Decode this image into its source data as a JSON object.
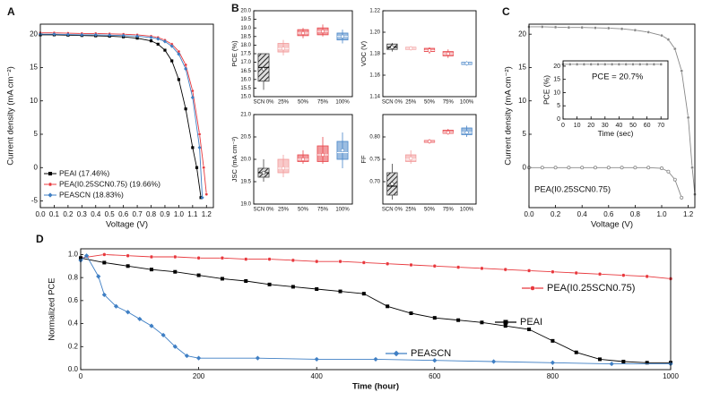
{
  "chart_data": [
    {
      "type": "line",
      "label": "A",
      "xlabel": "Voltage (V)",
      "ylabel": "Current density (mA cm⁻²)",
      "legend": "lower left",
      "xlim": [
        0,
        1.25
      ],
      "xticks": [
        {
          "value": 0,
          "label": "0.0"
        },
        0.1,
        0.2,
        0.3,
        0.4,
        0.5,
        0.6,
        0.7,
        0.8,
        0.9,
        {
          "value": 1,
          "label": "1.0"
        },
        1.1,
        1.2
      ],
      "ylim": [
        -6,
        21.5
      ],
      "yticks": [
        -5,
        0,
        5,
        10,
        15,
        20
      ],
      "series": [
        {
          "name": "PEAI (17.46%)",
          "color": "#000000",
          "marker": "square",
          "x": [
            0,
            0.1,
            0.2,
            0.3,
            0.4,
            0.5,
            0.6,
            0.7,
            0.8,
            0.85,
            0.9,
            0.95,
            1,
            1.05,
            1.1,
            1.13,
            1.16
          ],
          "values": [
            19.9,
            19.9,
            19.85,
            19.8,
            19.75,
            19.7,
            19.6,
            19.4,
            19.0,
            18.5,
            17.6,
            16.0,
            13.2,
            8.8,
            3.0,
            0,
            -4.5
          ]
        },
        {
          "name": "PEA(I0.25SCN0.75) (19.66%)",
          "color": "#e8383d",
          "marker": "circle",
          "x": [
            0,
            0.1,
            0.2,
            0.3,
            0.4,
            0.5,
            0.6,
            0.7,
            0.8,
            0.85,
            0.9,
            0.95,
            1,
            1.05,
            1.1,
            1.15,
            1.18,
            1.2
          ],
          "values": [
            20.2,
            20.2,
            20.15,
            20.1,
            20.1,
            20.05,
            20,
            19.9,
            19.7,
            19.5,
            19.1,
            18.5,
            17.4,
            15.4,
            11.5,
            5,
            0,
            -4
          ]
        },
        {
          "name": "PEASCN (18.83%)",
          "color": "#3f7fc4",
          "marker": "diamond",
          "x": [
            0,
            0.1,
            0.2,
            0.3,
            0.4,
            0.5,
            0.6,
            0.7,
            0.8,
            0.85,
            0.9,
            0.95,
            1,
            1.05,
            1.1,
            1.15,
            1.17
          ],
          "values": [
            20,
            20,
            19.95,
            19.9,
            19.9,
            19.85,
            19.8,
            19.7,
            19.5,
            19.3,
            18.9,
            18.2,
            17,
            14.8,
            10.5,
            3,
            -4.5
          ]
        }
      ]
    },
    {
      "type": "box",
      "label": "B",
      "ylabel": "PCE (%)",
      "categories": [
        "SCN 0%",
        "25%",
        "50%",
        "75%",
        "100%"
      ],
      "colors": [
        "#444444",
        "#f29c9c",
        "#e8474c",
        "#e8474c",
        "#4a86c8"
      ],
      "ylim": [
        15,
        20
      ],
      "yticks": [
        {
          "value": 15,
          "label": "15.0"
        },
        15.5,
        {
          "value": 16,
          "label": "16.0"
        },
        16.5,
        {
          "value": 17,
          "label": "17.0"
        },
        17.5,
        {
          "value": 18,
          "label": "18.0"
        },
        18.5,
        {
          "value": 19,
          "label": "19.0"
        },
        19.5,
        {
          "value": 20,
          "label": "20.0"
        }
      ],
      "low": [
        15.4,
        17.4,
        18.4,
        18.5,
        18.1
      ],
      "q1": [
        15.9,
        17.6,
        18.55,
        18.6,
        18.3
      ],
      "median": [
        16.7,
        17.8,
        18.7,
        18.8,
        18.5
      ],
      "q3": [
        17.5,
        18.1,
        18.9,
        19.0,
        18.7
      ],
      "high": [
        17.5,
        18.3,
        19.0,
        19.2,
        18.9
      ],
      "mean": [
        16.6,
        17.8,
        18.7,
        18.8,
        18.5
      ]
    },
    {
      "type": "box",
      "ylabel": "VOC (V)",
      "categories": [
        "SCN 0%",
        "25%",
        "50%",
        "75%",
        "100%"
      ],
      "colors": [
        "#444444",
        "#f29c9c",
        "#e8474c",
        "#e8474c",
        "#4a86c8"
      ],
      "ylim": [
        1.14,
        1.22
      ],
      "yticks": [
        1.14,
        1.16,
        1.18,
        {
          "value": 1.2,
          "label": "1.20"
        },
        1.22
      ],
      "low": [
        1.182,
        1.183,
        1.18,
        1.176,
        1.169
      ],
      "q1": [
        1.184,
        1.184,
        1.182,
        1.178,
        1.17
      ],
      "median": [
        1.186,
        1.185,
        1.183,
        1.18,
        1.171
      ],
      "q3": [
        1.189,
        1.186,
        1.185,
        1.182,
        1.172
      ],
      "high": [
        1.19,
        1.187,
        1.186,
        1.184,
        1.173
      ],
      "mean": [
        1.186,
        1.185,
        1.183,
        1.18,
        1.171
      ]
    },
    {
      "type": "box",
      "ylabel": "JSC (mA cm⁻²)",
      "categories": [
        "SCN 0%",
        "25%",
        "50%",
        "75%",
        "100%"
      ],
      "colors": [
        "#444444",
        "#f29c9c",
        "#e8474c",
        "#e8474c",
        "#4a86c8"
      ],
      "ylim": [
        19,
        21
      ],
      "yticks": [
        {
          "value": 19,
          "label": "19.0"
        },
        19.5,
        {
          "value": 20,
          "label": "20.0"
        },
        20.5,
        {
          "value": 21,
          "label": "21.0"
        }
      ],
      "low": [
        19.5,
        19.6,
        19.9,
        19.9,
        19.8
      ],
      "q1": [
        19.6,
        19.7,
        19.95,
        19.95,
        20.0
      ],
      "median": [
        19.7,
        19.8,
        20.0,
        20.1,
        20.15
      ],
      "q3": [
        19.8,
        20.0,
        20.1,
        20.3,
        20.4
      ],
      "high": [
        20.0,
        20.1,
        20.2,
        20.5,
        20.6
      ],
      "mean": [
        19.7,
        19.8,
        20.0,
        20.1,
        20.2
      ]
    },
    {
      "type": "box",
      "ylabel": "FF",
      "categories": [
        "SCN 0%",
        "25%",
        "50%",
        "75%",
        "100%"
      ],
      "colors": [
        "#444444",
        "#f29c9c",
        "#e8474c",
        "#e8474c",
        "#4a86c8"
      ],
      "ylim": [
        0.65,
        0.85
      ],
      "yticks": [
        {
          "value": 0.7,
          "label": "0.70"
        },
        0.75,
        {
          "value": 0.8,
          "label": "0.80"
        }
      ],
      "low": [
        0.66,
        0.74,
        0.785,
        0.805,
        0.8
      ],
      "q1": [
        0.67,
        0.745,
        0.788,
        0.808,
        0.805
      ],
      "median": [
        0.69,
        0.75,
        0.79,
        0.81,
        0.81
      ],
      "q3": [
        0.72,
        0.76,
        0.792,
        0.815,
        0.82
      ],
      "high": [
        0.74,
        0.77,
        0.795,
        0.818,
        0.825
      ],
      "mean": [
        0.695,
        0.752,
        0.79,
        0.81,
        0.81
      ]
    },
    {
      "type": "line",
      "label": "C",
      "xlabel": "Voltage (V)",
      "ylabel": "Current density (mA cm⁻²)",
      "annotation": "PEA(I0.25SCN0.75)",
      "xlim": [
        0,
        1.25
      ],
      "xticks": [
        {
          "value": 0,
          "label": "0.0"
        },
        0.2,
        0.4,
        0.6,
        0.8,
        {
          "value": 1,
          "label": "1.0"
        },
        1.2
      ],
      "ylim": [
        -6,
        21.5
      ],
      "yticks": [
        0,
        5,
        10,
        15,
        20
      ],
      "series": [
        {
          "color": "#888888",
          "marker": "circle",
          "x": [
            0,
            0.1,
            0.2,
            0.3,
            0.4,
            0.5,
            0.6,
            0.7,
            0.8,
            0.9,
            1,
            1.05,
            1.1,
            1.15,
            1.2,
            1.23,
            1.25
          ],
          "values": [
            21.1,
            21.1,
            21.05,
            21,
            21,
            20.95,
            20.9,
            20.8,
            20.6,
            20.3,
            19.8,
            19.2,
            17.8,
            14.5,
            7.5,
            0,
            -4
          ]
        },
        {
          "color": "#888888",
          "marker": "open-circle",
          "x": [
            0,
            0.1,
            0.2,
            0.3,
            0.4,
            0.5,
            0.6,
            0.7,
            0.8,
            0.9,
            1,
            1.05,
            1.1,
            1.15
          ],
          "values": [
            0,
            0,
            0,
            0,
            0,
            0,
            0,
            0,
            0,
            0,
            -0.1,
            -0.6,
            -1.8,
            -4.5
          ]
        }
      ]
    },
    {
      "type": "line",
      "xlabel": "Time (sec)",
      "ylabel": "PCE (%)",
      "annotation": "PCE = 20.7%",
      "xlim": [
        0,
        75
      ],
      "xticks": [
        0,
        10,
        20,
        30,
        40,
        50,
        60,
        70
      ],
      "ylim": [
        0,
        22
      ],
      "yticks": [
        0,
        5,
        10,
        15,
        20
      ],
      "series": [
        {
          "color": "#888888",
          "marker": "circle",
          "x": [
            0,
            5,
            10,
            15,
            20,
            25,
            30,
            35,
            40,
            45,
            50,
            55,
            60,
            65,
            70
          ],
          "values": [
            20.7,
            20.7,
            20.7,
            20.7,
            20.7,
            20.7,
            20.7,
            20.7,
            20.7,
            20.7,
            20.7,
            20.7,
            20.7,
            20.7,
            20.7
          ]
        }
      ]
    },
    {
      "type": "line",
      "label": "D",
      "xlabel": "Time (hour)",
      "ylabel": "Normalized PCE",
      "legend": "inline",
      "xlim": [
        0,
        1000
      ],
      "xticks": [
        0,
        200,
        400,
        600,
        800,
        1000
      ],
      "ylim": [
        0,
        1.05
      ],
      "yticks": [
        {
          "value": 0,
          "label": "0.0"
        },
        0.2,
        0.4,
        0.6,
        0.8,
        {
          "value": 1,
          "label": "1.0"
        }
      ],
      "series": [
        {
          "name": "PEA(I0.25SCN0.75)",
          "color": "#e8383d",
          "marker": "circle",
          "x": [
            0,
            40,
            80,
            120,
            160,
            200,
            240,
            280,
            320,
            360,
            400,
            440,
            480,
            520,
            560,
            600,
            640,
            680,
            720,
            760,
            800,
            840,
            880,
            920,
            960,
            1000
          ],
          "values": [
            0.97,
            1.0,
            0.99,
            0.98,
            0.98,
            0.97,
            0.97,
            0.96,
            0.96,
            0.95,
            0.94,
            0.94,
            0.93,
            0.92,
            0.91,
            0.9,
            0.89,
            0.88,
            0.87,
            0.86,
            0.85,
            0.84,
            0.83,
            0.82,
            0.81,
            0.79
          ]
        },
        {
          "name": "PEAI",
          "color": "#000000",
          "marker": "square",
          "x": [
            0,
            40,
            80,
            120,
            160,
            200,
            240,
            280,
            320,
            360,
            400,
            440,
            480,
            520,
            560,
            600,
            640,
            680,
            720,
            760,
            800,
            840,
            880,
            920,
            960,
            1000
          ],
          "values": [
            0.97,
            0.93,
            0.9,
            0.87,
            0.85,
            0.82,
            0.79,
            0.77,
            0.74,
            0.72,
            0.7,
            0.68,
            0.66,
            0.55,
            0.49,
            0.45,
            0.43,
            0.41,
            0.38,
            0.35,
            0.25,
            0.15,
            0.09,
            0.07,
            0.06,
            0.06
          ]
        },
        {
          "name": "PEASCN",
          "color": "#3f7fc4",
          "marker": "diamond",
          "x": [
            0,
            10,
            30,
            40,
            60,
            80,
            100,
            120,
            140,
            160,
            180,
            200,
            300,
            400,
            500,
            600,
            700,
            800,
            900,
            1000
          ],
          "values": [
            0.95,
            0.99,
            0.81,
            0.65,
            0.55,
            0.5,
            0.44,
            0.38,
            0.3,
            0.2,
            0.12,
            0.1,
            0.1,
            0.09,
            0.09,
            0.08,
            0.07,
            0.06,
            0.05,
            0.05
          ]
        }
      ]
    }
  ]
}
